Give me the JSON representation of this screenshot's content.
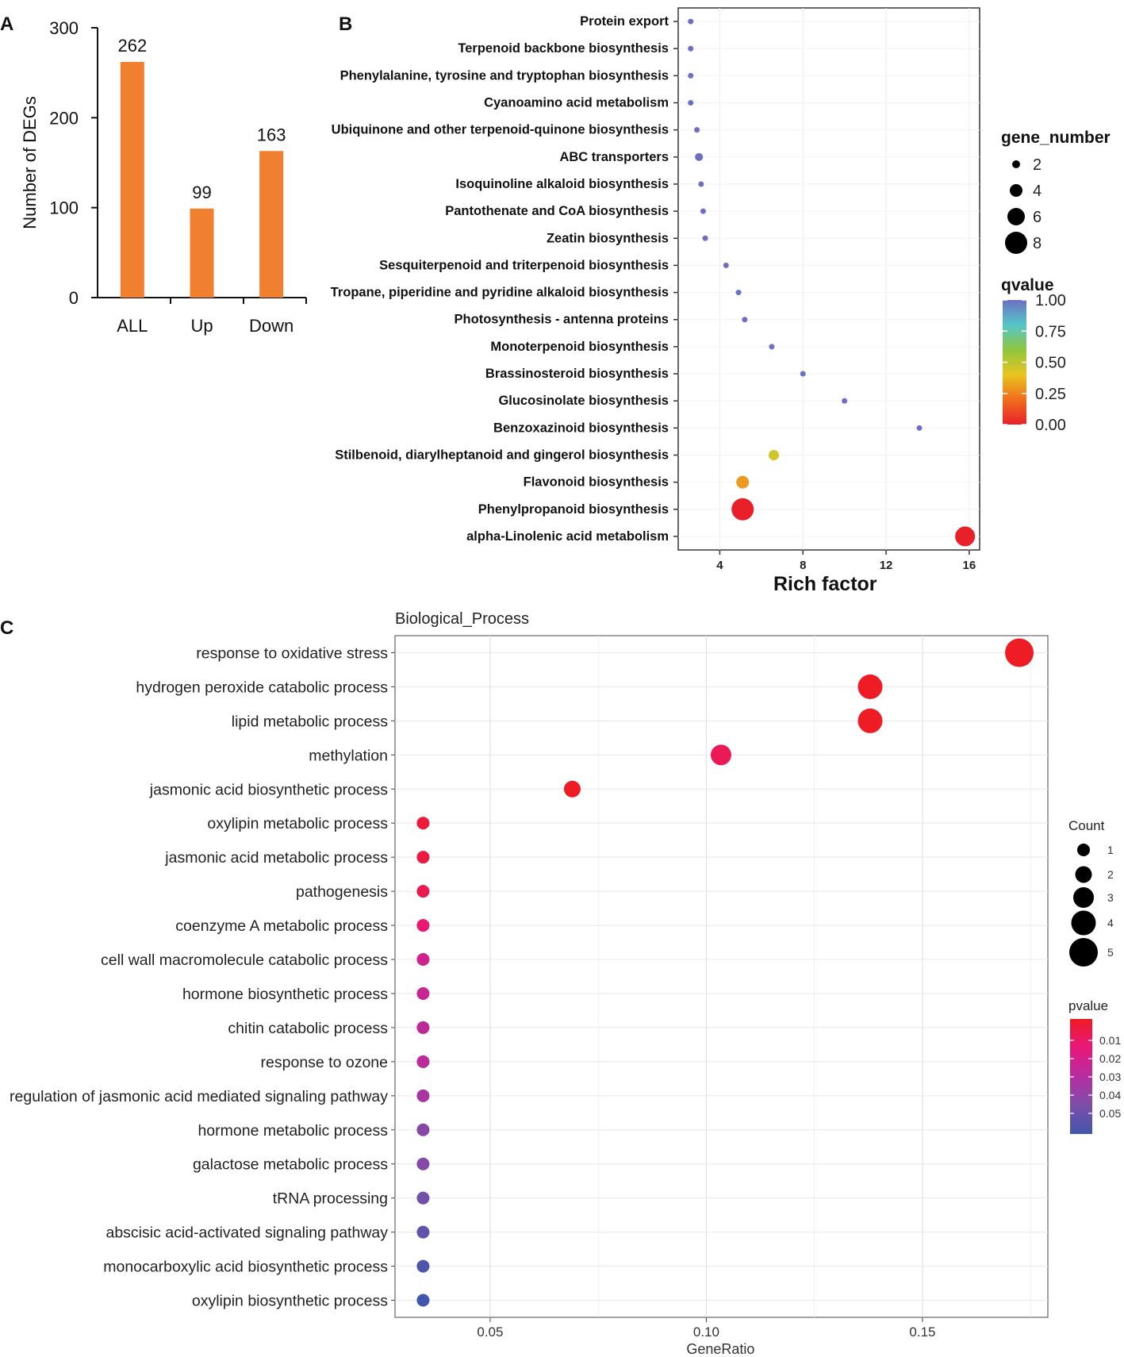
{
  "colors": {
    "bar": "#f07f2f",
    "scale_b": [
      "#e8202a",
      "#f06d1e",
      "#e9c51f",
      "#8ec63f",
      "#55c6c8",
      "#6d6fc2"
    ],
    "scale_c": [
      "#ee1c25",
      "#e8177a",
      "#b62da0",
      "#7d4ea8",
      "#4157ad"
    ]
  },
  "chart_data": [
    {
      "panel": "A",
      "type": "bar",
      "categories": [
        "ALL",
        "Up",
        "Down"
      ],
      "values": [
        262,
        99,
        163
      ],
      "ylabel": "Number of DEGs",
      "ylim": [
        0,
        300
      ],
      "yticks": [
        0,
        100,
        200,
        300
      ],
      "legend": null
    },
    {
      "panel": "B",
      "type": "scatter",
      "xlabel": "Rich factor",
      "xlim": [
        2,
        16.5
      ],
      "xticks": [
        4,
        8,
        12,
        16
      ],
      "grid": true,
      "points": [
        {
          "term": "Protein export",
          "rich_factor": 2.6,
          "gene_number": 1,
          "qvalue": 1.0
        },
        {
          "term": "Terpenoid backbone biosynthesis",
          "rich_factor": 2.6,
          "gene_number": 1,
          "qvalue": 1.0
        },
        {
          "term": "Phenylalanine, tyrosine and tryptophan biosynthesis",
          "rich_factor": 2.6,
          "gene_number": 1,
          "qvalue": 1.0
        },
        {
          "term": "Cyanoamino acid metabolism",
          "rich_factor": 2.6,
          "gene_number": 1,
          "qvalue": 1.0
        },
        {
          "term": "Ubiquinone and other terpenoid-quinone biosynthesis",
          "rich_factor": 2.9,
          "gene_number": 1,
          "qvalue": 1.0
        },
        {
          "term": "ABC transporters",
          "rich_factor": 3.0,
          "gene_number": 2,
          "qvalue": 1.0
        },
        {
          "term": "Isoquinoline alkaloid biosynthesis",
          "rich_factor": 3.1,
          "gene_number": 1,
          "qvalue": 1.0
        },
        {
          "term": "Pantothenate and CoA biosynthesis",
          "rich_factor": 3.2,
          "gene_number": 1,
          "qvalue": 1.0
        },
        {
          "term": "Zeatin biosynthesis",
          "rich_factor": 3.3,
          "gene_number": 1,
          "qvalue": 1.0
        },
        {
          "term": "Sesquiterpenoid and triterpenoid biosynthesis",
          "rich_factor": 4.3,
          "gene_number": 1,
          "qvalue": 1.0
        },
        {
          "term": "Tropane, piperidine and pyridine alkaloid biosynthesis",
          "rich_factor": 4.9,
          "gene_number": 1,
          "qvalue": 1.0
        },
        {
          "term": "Photosynthesis - antenna proteins",
          "rich_factor": 5.2,
          "gene_number": 1,
          "qvalue": 1.0
        },
        {
          "term": "Monoterpenoid biosynthesis",
          "rich_factor": 6.5,
          "gene_number": 1,
          "qvalue": 1.0
        },
        {
          "term": "Brassinosteroid biosynthesis",
          "rich_factor": 8.0,
          "gene_number": 1,
          "qvalue": 1.0
        },
        {
          "term": "Glucosinolate biosynthesis",
          "rich_factor": 10.0,
          "gene_number": 1,
          "qvalue": 1.0
        },
        {
          "term": "Benzoxazinoid biosynthesis",
          "rich_factor": 13.6,
          "gene_number": 1,
          "qvalue": 1.0
        },
        {
          "term": "Stilbenoid, diarylheptanoid and gingerol biosynthesis",
          "rich_factor": 6.6,
          "gene_number": 3,
          "qvalue": 0.45
        },
        {
          "term": "Flavonoid biosynthesis",
          "rich_factor": 5.1,
          "gene_number": 4,
          "qvalue": 0.3
        },
        {
          "term": "Phenylpropanoid biosynthesis",
          "rich_factor": 5.1,
          "gene_number": 8,
          "qvalue": 0.0
        },
        {
          "term": "alpha-Linolenic acid metabolism",
          "rich_factor": 15.8,
          "gene_number": 7,
          "qvalue": 0.0
        }
      ],
      "legend": {
        "size_title": "gene_number",
        "size_values": [
          2,
          4,
          6,
          8
        ],
        "color_title": "qvalue",
        "color_ticks": [
          "1.00",
          "0.75",
          "0.50",
          "0.25",
          "0.00"
        ],
        "placement": "right"
      }
    },
    {
      "panel": "C",
      "type": "scatter",
      "title": "Biological_Process",
      "xlabel": "GeneRatio",
      "xlim": [
        0.028,
        0.179
      ],
      "xticks": [
        "0.05",
        "0.10",
        "0.15"
      ],
      "grid": true,
      "points": [
        {
          "term": "response to oxidative stress",
          "gene_ratio": 0.1724,
          "count": 5,
          "pvalue": 0.001
        },
        {
          "term": "hydrogen peroxide catabolic process",
          "gene_ratio": 0.1379,
          "count": 4,
          "pvalue": 0.001
        },
        {
          "term": "lipid metabolic process",
          "gene_ratio": 0.1379,
          "count": 4,
          "pvalue": 0.002
        },
        {
          "term": "methylation",
          "gene_ratio": 0.1034,
          "count": 3,
          "pvalue": 0.012
        },
        {
          "term": "jasmonic acid biosynthetic process",
          "gene_ratio": 0.069,
          "count": 2,
          "pvalue": 0.003
        },
        {
          "term": "oxylipin metabolic process",
          "gene_ratio": 0.0345,
          "count": 1,
          "pvalue": 0.008
        },
        {
          "term": "jasmonic acid metabolic process",
          "gene_ratio": 0.0345,
          "count": 1,
          "pvalue": 0.009
        },
        {
          "term": "pathogenesis",
          "gene_ratio": 0.0345,
          "count": 1,
          "pvalue": 0.011
        },
        {
          "term": "coenzyme A metabolic process",
          "gene_ratio": 0.0345,
          "count": 1,
          "pvalue": 0.016
        },
        {
          "term": "cell wall macromolecule catabolic process",
          "gene_ratio": 0.0345,
          "count": 1,
          "pvalue": 0.024
        },
        {
          "term": "hormone biosynthetic process",
          "gene_ratio": 0.0345,
          "count": 1,
          "pvalue": 0.026
        },
        {
          "term": "chitin catabolic process",
          "gene_ratio": 0.0345,
          "count": 1,
          "pvalue": 0.028
        },
        {
          "term": "response to ozone",
          "gene_ratio": 0.0345,
          "count": 1,
          "pvalue": 0.029
        },
        {
          "term": "regulation of jasmonic acid mediated signaling pathway",
          "gene_ratio": 0.0345,
          "count": 1,
          "pvalue": 0.033
        },
        {
          "term": "hormone metabolic process",
          "gene_ratio": 0.0345,
          "count": 1,
          "pvalue": 0.04
        },
        {
          "term": "galactose metabolic process",
          "gene_ratio": 0.0345,
          "count": 1,
          "pvalue": 0.041
        },
        {
          "term": "tRNA processing",
          "gene_ratio": 0.0345,
          "count": 1,
          "pvalue": 0.045
        },
        {
          "term": "abscisic acid-activated signaling pathway",
          "gene_ratio": 0.0345,
          "count": 1,
          "pvalue": 0.048
        },
        {
          "term": "monocarboxylic acid biosynthetic process",
          "gene_ratio": 0.0345,
          "count": 1,
          "pvalue": 0.053
        },
        {
          "term": "oxylipin biosynthetic process",
          "gene_ratio": 0.0345,
          "count": 1,
          "pvalue": 0.056
        }
      ],
      "legend": {
        "size_title": "Count",
        "size_values": [
          1,
          2,
          3,
          4,
          5
        ],
        "color_title": "pvalue",
        "color_ticks": [
          "0.01",
          "0.02",
          "0.03",
          "0.04",
          "0.05"
        ],
        "placement": "right"
      }
    }
  ]
}
